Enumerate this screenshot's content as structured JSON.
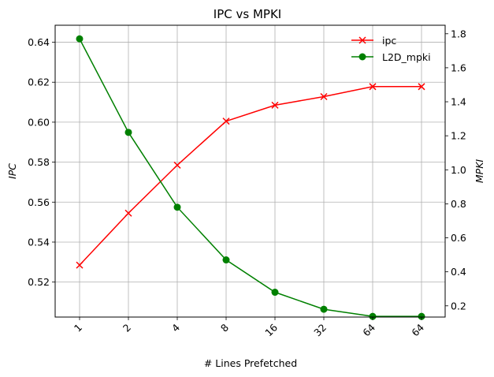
{
  "chart_data": {
    "type": "line",
    "title": "IPC vs MPKI",
    "xlabel": "# Lines Prefetched",
    "ylabel_left": "IPC",
    "ylabel_right": "MPKI",
    "categories": [
      "1",
      "2",
      "4",
      "8",
      "16",
      "32",
      "64",
      "64"
    ],
    "ylim_left": [
      0.5025,
      0.6485
    ],
    "ylim_right": [
      0.134,
      1.85
    ],
    "yticks_left": [
      0.52,
      0.54,
      0.56,
      0.58,
      0.6,
      0.62,
      0.64
    ],
    "yticks_left_labels": [
      "0.52",
      "0.54",
      "0.56",
      "0.58",
      "0.60",
      "0.62",
      "0.64"
    ],
    "yticks_right": [
      0.2,
      0.4,
      0.6,
      0.8,
      1.0,
      1.2,
      1.4,
      1.6,
      1.8
    ],
    "yticks_right_labels": [
      "0.2",
      "0.4",
      "0.6",
      "0.8",
      "1.0",
      "1.2",
      "1.4",
      "1.6",
      "1.8"
    ],
    "grid": true,
    "legend_position": "top-right",
    "series": [
      {
        "name": "ipc",
        "axis": "left",
        "color": "#ff0000",
        "marker": "x",
        "values": [
          0.5285,
          0.5545,
          0.5785,
          0.6005,
          0.6085,
          0.6128,
          0.6178,
          0.6178
        ]
      },
      {
        "name": "L2D_mpki",
        "axis": "right",
        "color": "#008000",
        "marker": "o",
        "values": [
          1.77,
          1.22,
          0.78,
          0.47,
          0.28,
          0.18,
          0.138,
          0.138
        ]
      }
    ]
  }
}
